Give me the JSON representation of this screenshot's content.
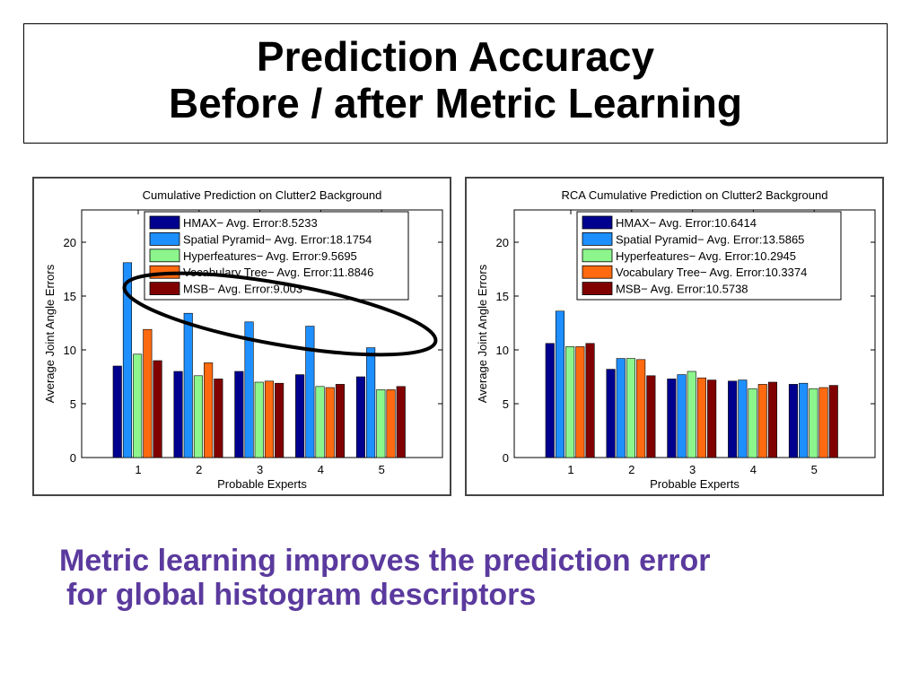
{
  "slide": {
    "title_line1": "Prediction Accuracy",
    "title_line2": "Before / after Metric Learning",
    "caption_line1": "Metric learning improves the prediction error",
    "caption_line2": "for global histogram descriptors",
    "caption_color": "#5b3a9e"
  },
  "colors": {
    "HMAX": "#00008f",
    "Spatial Pyramid": "#1e8fff",
    "Hyperfeatures": "#8cf58c",
    "Vocabulary Tree": "#ff6a10",
    "MSB": "#800000"
  },
  "chart_data": [
    {
      "type": "bar",
      "title": "Cumulative Prediction on Clutter2  Background",
      "xlabel": "Probable Experts",
      "ylabel": "Average Joint Angle Errors",
      "categories": [
        "1",
        "2",
        "3",
        "4",
        "5"
      ],
      "ylim": [
        0,
        23
      ],
      "yticks": [
        0,
        5,
        10,
        15,
        20
      ],
      "legend_position": "top",
      "annotation": "ellipse around Spatial Pyramid bars",
      "series": [
        {
          "name": "HMAX",
          "legend": "HMAX− Avg. Error:8.5233",
          "values": [
            8.5,
            8.0,
            8.0,
            7.7,
            7.5
          ]
        },
        {
          "name": "Spatial Pyramid",
          "legend": "Spatial Pyramid− Avg. Error:18.1754",
          "values": [
            18.1,
            13.4,
            12.6,
            12.2,
            10.2
          ]
        },
        {
          "name": "Hyperfeatures",
          "legend": "Hyperfeatures− Avg. Error:9.5695",
          "values": [
            9.6,
            7.6,
            7.0,
            6.6,
            6.3
          ]
        },
        {
          "name": "Vocabulary Tree",
          "legend": "Vocabulary Tree− Avg. Error:11.8846",
          "values": [
            11.9,
            8.8,
            7.1,
            6.5,
            6.3
          ]
        },
        {
          "name": "MSB",
          "legend": "MSB− Avg. Error:9.003",
          "values": [
            9.0,
            7.3,
            6.9,
            6.8,
            6.6
          ]
        }
      ]
    },
    {
      "type": "bar",
      "title": "RCA Cumulative Prediction on Clutter2  Background",
      "xlabel": "Probable Experts",
      "ylabel": "Average Joint Angle Errors",
      "categories": [
        "1",
        "2",
        "3",
        "4",
        "5"
      ],
      "ylim": [
        0,
        23
      ],
      "yticks": [
        0,
        5,
        10,
        15,
        20
      ],
      "legend_position": "top",
      "series": [
        {
          "name": "HMAX",
          "legend": "HMAX− Avg. Error:10.6414",
          "values": [
            10.6,
            8.2,
            7.3,
            7.1,
            6.8
          ]
        },
        {
          "name": "Spatial Pyramid",
          "legend": "Spatial Pyramid− Avg. Error:13.5865",
          "values": [
            13.6,
            9.2,
            7.7,
            7.2,
            6.9
          ]
        },
        {
          "name": "Hyperfeatures",
          "legend": "Hyperfeatures− Avg. Error:10.2945",
          "values": [
            10.3,
            9.2,
            8.0,
            6.4,
            6.4
          ]
        },
        {
          "name": "Vocabulary Tree",
          "legend": "Vocabulary Tree− Avg. Error:10.3374",
          "values": [
            10.3,
            9.1,
            7.4,
            6.8,
            6.5
          ]
        },
        {
          "name": "MSB",
          "legend": "MSB− Avg. Error:10.5738",
          "values": [
            10.6,
            7.6,
            7.2,
            7.0,
            6.7
          ]
        }
      ]
    }
  ]
}
